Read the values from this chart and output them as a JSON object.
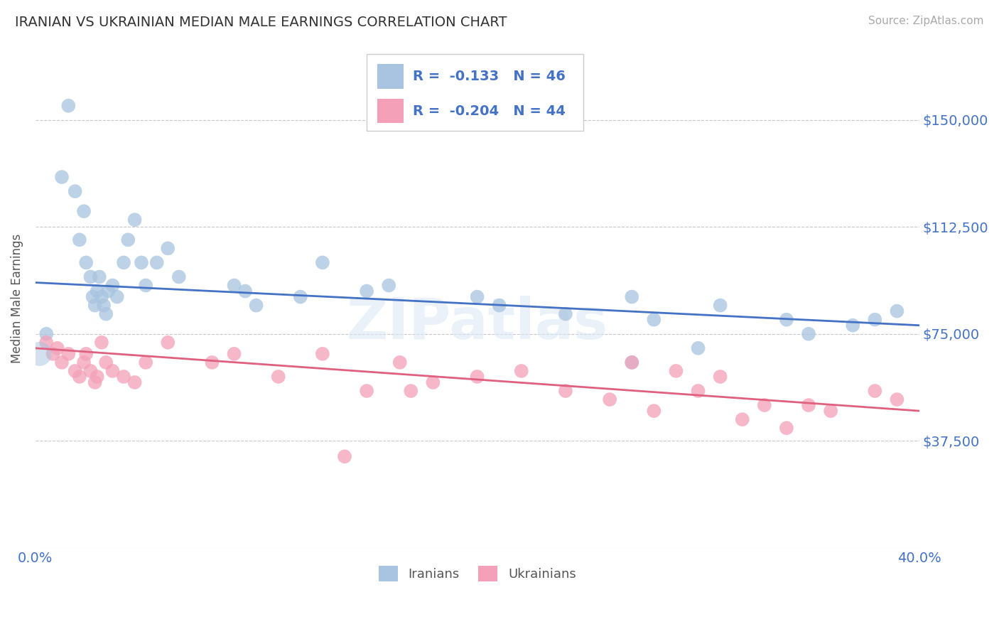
{
  "title": "IRANIAN VS UKRAINIAN MEDIAN MALE EARNINGS CORRELATION CHART",
  "source_text": "Source: ZipAtlas.com",
  "ylabel": "Median Male Earnings",
  "xlim": [
    0.0,
    0.4
  ],
  "ylim": [
    0,
    175000
  ],
  "yticks": [
    0,
    37500,
    75000,
    112500,
    150000
  ],
  "ytick_labels": [
    "",
    "$37,500",
    "$75,000",
    "$112,500",
    "$150,000"
  ],
  "xticks": [
    0.0,
    0.05,
    0.1,
    0.15,
    0.2,
    0.25,
    0.3,
    0.35,
    0.4
  ],
  "xtick_labels": [
    "0.0%",
    "",
    "",
    "",
    "",
    "",
    "",
    "",
    "40.0%"
  ],
  "background_color": "#ffffff",
  "grid_color": "#c8c8c8",
  "axis_color": "#4472c4",
  "blue_scatter_color": "#a8c4e0",
  "pink_scatter_color": "#f4a0b8",
  "blue_line_color": "#4472c4",
  "pink_line_color": "#e06080",
  "legend_blue_R": "R = ",
  "legend_blue_Rval": "-0.133",
  "legend_blue_N": "N = ",
  "legend_blue_Nval": "46",
  "legend_pink_R": "R = ",
  "legend_pink_Rval": "-0.204",
  "legend_pink_N": "N = ",
  "legend_pink_Nval": "44",
  "watermark_text": "ZIPatlas",
  "iranians_x": [
    0.005,
    0.012,
    0.015,
    0.018,
    0.02,
    0.022,
    0.023,
    0.025,
    0.026,
    0.027,
    0.028,
    0.029,
    0.03,
    0.031,
    0.032,
    0.033,
    0.035,
    0.037,
    0.04,
    0.042,
    0.045,
    0.048,
    0.05,
    0.055,
    0.06,
    0.065,
    0.09,
    0.095,
    0.1,
    0.12,
    0.13,
    0.15,
    0.16,
    0.2,
    0.21,
    0.24,
    0.27,
    0.28,
    0.31,
    0.34,
    0.35,
    0.37,
    0.38,
    0.39,
    0.27,
    0.3
  ],
  "iranians_y": [
    75000,
    130000,
    155000,
    125000,
    108000,
    118000,
    100000,
    95000,
    88000,
    85000,
    90000,
    95000,
    88000,
    85000,
    82000,
    90000,
    92000,
    88000,
    100000,
    108000,
    115000,
    100000,
    92000,
    100000,
    105000,
    95000,
    92000,
    90000,
    85000,
    88000,
    100000,
    90000,
    92000,
    88000,
    85000,
    82000,
    88000,
    80000,
    85000,
    80000,
    75000,
    78000,
    80000,
    83000,
    65000,
    70000
  ],
  "ukrainians_x": [
    0.005,
    0.008,
    0.01,
    0.012,
    0.015,
    0.018,
    0.02,
    0.022,
    0.023,
    0.025,
    0.027,
    0.028,
    0.03,
    0.032,
    0.035,
    0.04,
    0.045,
    0.05,
    0.06,
    0.08,
    0.09,
    0.11,
    0.13,
    0.15,
    0.165,
    0.18,
    0.2,
    0.22,
    0.24,
    0.26,
    0.28,
    0.3,
    0.31,
    0.32,
    0.33,
    0.34,
    0.35,
    0.36,
    0.38,
    0.39,
    0.29,
    0.27,
    0.17,
    0.14
  ],
  "ukrainians_y": [
    72000,
    68000,
    70000,
    65000,
    68000,
    62000,
    60000,
    65000,
    68000,
    62000,
    58000,
    60000,
    72000,
    65000,
    62000,
    60000,
    58000,
    65000,
    72000,
    65000,
    68000,
    60000,
    68000,
    55000,
    65000,
    58000,
    60000,
    62000,
    55000,
    52000,
    48000,
    55000,
    60000,
    45000,
    50000,
    42000,
    50000,
    48000,
    55000,
    52000,
    62000,
    65000,
    55000,
    32000
  ],
  "trend_blue_x0": 0.0,
  "trend_blue_x1": 0.4,
  "trend_blue_y0": 93000,
  "trend_blue_y1": 78000,
  "trend_pink_x0": 0.0,
  "trend_pink_x1": 0.4,
  "trend_pink_y0": 70000,
  "trend_pink_y1": 48000
}
